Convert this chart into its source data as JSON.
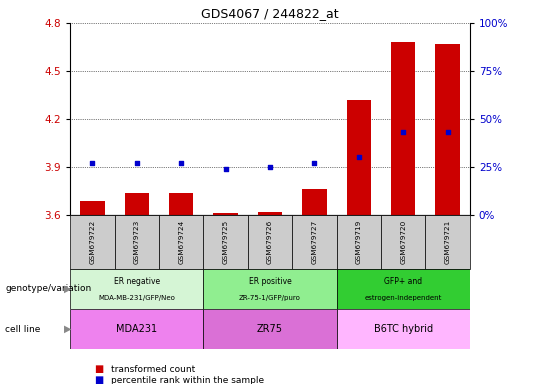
{
  "title": "GDS4067 / 244822_at",
  "samples": [
    "GSM679722",
    "GSM679723",
    "GSM679724",
    "GSM679725",
    "GSM679726",
    "GSM679727",
    "GSM679719",
    "GSM679720",
    "GSM679721"
  ],
  "transformed_count": [
    3.69,
    3.74,
    3.74,
    3.61,
    3.62,
    3.76,
    4.32,
    4.68,
    4.67
  ],
  "percentile_rank": [
    27,
    27,
    27,
    24,
    25,
    27,
    30,
    43,
    43
  ],
  "ylim_left": [
    3.6,
    4.8
  ],
  "ylim_right": [
    0,
    100
  ],
  "yticks_left": [
    3.6,
    3.9,
    4.2,
    4.5,
    4.8
  ],
  "yticks_right": [
    0,
    25,
    50,
    75,
    100
  ],
  "groups": [
    {
      "label1": "ER negative",
      "label2": "MDA-MB-231/GFP/Neo",
      "cell_line": "MDA231",
      "start": 0,
      "end": 3,
      "geno_color": "#d5f5d5",
      "cell_color": "#ee82ee"
    },
    {
      "label1": "ER positive",
      "label2": "ZR-75-1/GFP/puro",
      "cell_line": "ZR75",
      "start": 3,
      "end": 6,
      "geno_color": "#90ee90",
      "cell_color": "#da70d6"
    },
    {
      "label1": "GFP+ and",
      "label2": "estrogen-independent",
      "cell_line": "B6TC hybrid",
      "start": 6,
      "end": 9,
      "geno_color": "#32cd32",
      "cell_color": "#ffb6ff"
    }
  ],
  "bar_color": "#cc0000",
  "dot_color": "#0000cc",
  "left_label_color": "#cc0000",
  "right_label_color": "#0000cc",
  "tick_bg_color": "#cccccc"
}
